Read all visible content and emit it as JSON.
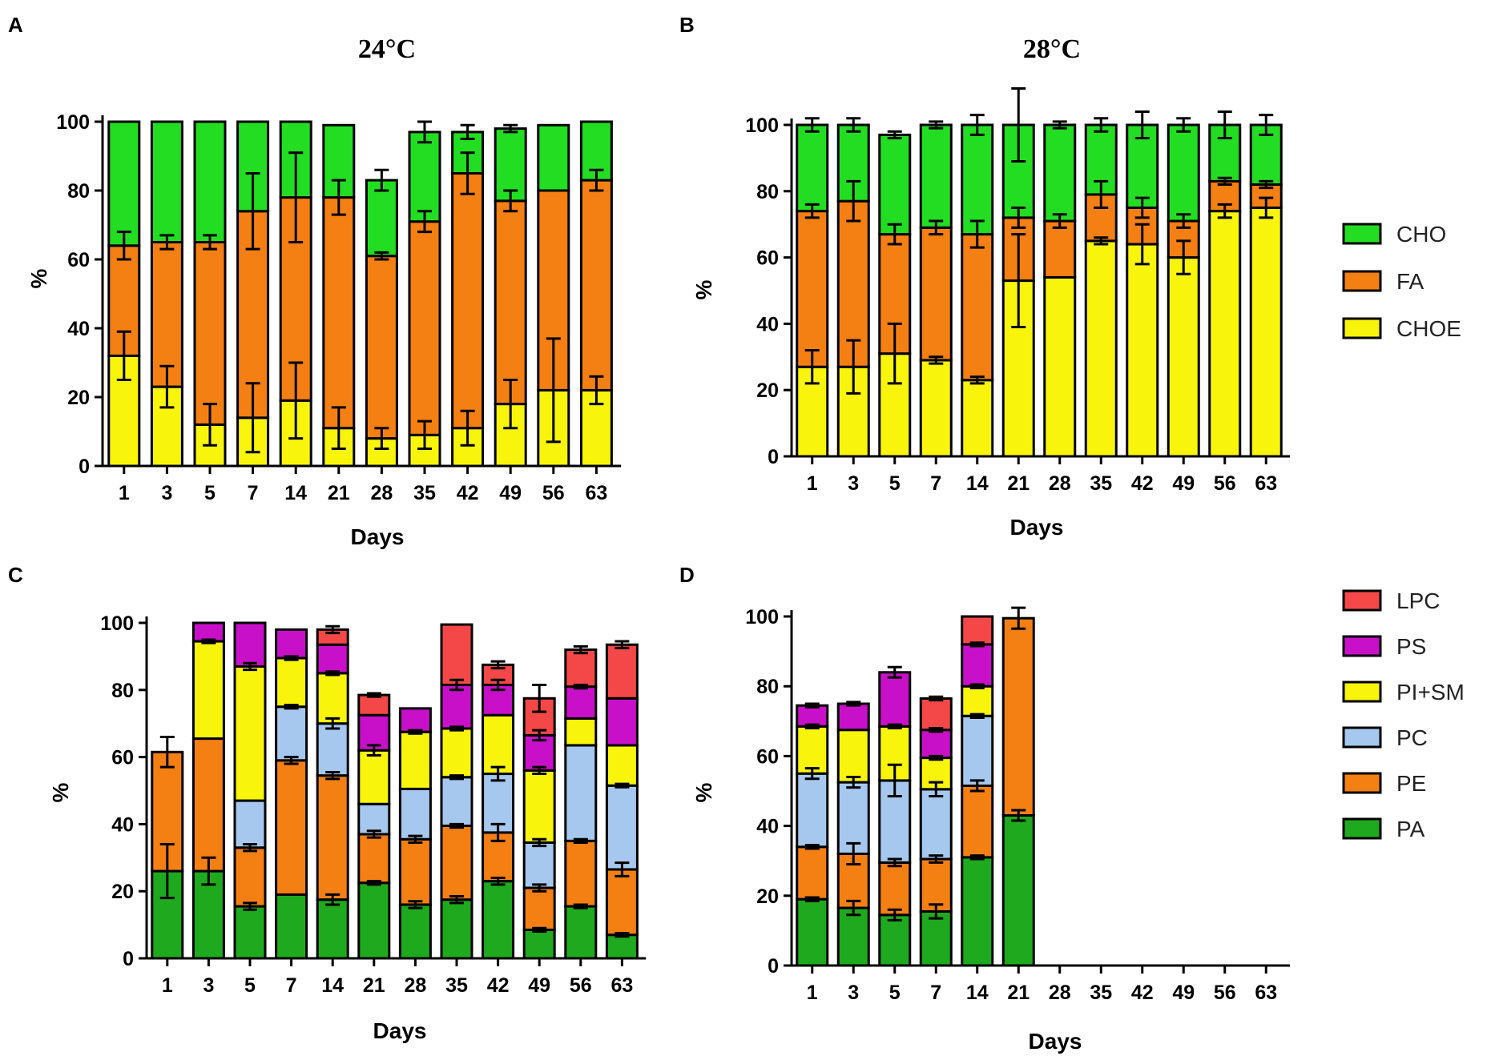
{
  "figure": {
    "background": "#ffffff"
  },
  "colors": {
    "CHO": "#22dd22",
    "FA": "#f47f13",
    "CHOE": "#f8f40c",
    "PA": "#1ea91e",
    "PE": "#f47f13",
    "PC": "#a6c8ee",
    "PI+SM": "#f8f40c",
    "PS": "#c810c8",
    "LPC": "#f44848"
  },
  "legends": {
    "top": [
      "CHO",
      "FA",
      "CHOE"
    ],
    "bottom": [
      "LPC",
      "PS",
      "PI+SM",
      "PC",
      "PE",
      "PA"
    ]
  },
  "chart_data": [
    {
      "panel": "A",
      "title": "24°C",
      "type": "bar",
      "stacked": true,
      "categories": [
        "1",
        "3",
        "5",
        "7",
        "14",
        "21",
        "28",
        "35",
        "42",
        "49",
        "56",
        "63"
      ],
      "xlabel": "Days",
      "ylabel": "%",
      "ylim": [
        0,
        100
      ],
      "yticks": [
        0,
        20,
        40,
        60,
        80,
        100
      ],
      "series": [
        {
          "name": "CHOE",
          "values": [
            32,
            23,
            12,
            14,
            19,
            11,
            8,
            9,
            11,
            18,
            22,
            22
          ],
          "errors": [
            7,
            6,
            6,
            10,
            11,
            6,
            3,
            4,
            5,
            7,
            15,
            4
          ]
        },
        {
          "name": "FA",
          "values": [
            32,
            42,
            53,
            60,
            59,
            67,
            53,
            62,
            74,
            59,
            58,
            61
          ],
          "errors": [
            4,
            2,
            2,
            11,
            13,
            5,
            1,
            3,
            6,
            3,
            0,
            3
          ]
        },
        {
          "name": "CHO",
          "values": [
            36,
            35,
            35,
            26,
            22,
            21,
            22,
            26,
            12,
            21,
            19,
            17
          ],
          "errors": [
            0,
            0,
            0,
            0,
            0,
            0,
            3,
            3,
            2,
            1,
            0,
            0
          ]
        }
      ]
    },
    {
      "panel": "B",
      "title": "28°C",
      "type": "bar",
      "stacked": true,
      "categories": [
        "1",
        "3",
        "5",
        "7",
        "14",
        "21",
        "28",
        "35",
        "42",
        "49",
        "56",
        "63"
      ],
      "xlabel": "Days",
      "ylabel": "%",
      "ylim": [
        0,
        100
      ],
      "yticks": [
        0,
        20,
        40,
        60,
        80,
        100
      ],
      "series": [
        {
          "name": "CHOE",
          "values": [
            27,
            27,
            31,
            29,
            23,
            53,
            54,
            65,
            64,
            60,
            74,
            75
          ],
          "errors": [
            5,
            8,
            9,
            1,
            1,
            14,
            0,
            1,
            6,
            5,
            2,
            3
          ]
        },
        {
          "name": "FA",
          "values": [
            47,
            50,
            36,
            40,
            44,
            19,
            17,
            14,
            11,
            11,
            9,
            7
          ],
          "errors": [
            2,
            6,
            3,
            2,
            4,
            3,
            2,
            4,
            3,
            2,
            1,
            1
          ]
        },
        {
          "name": "CHO",
          "values": [
            26,
            23,
            30,
            31,
            33,
            28,
            29,
            21,
            25,
            29,
            17,
            18
          ],
          "errors": [
            2,
            2,
            1,
            1,
            3,
            11,
            1,
            2,
            4,
            2,
            4,
            3
          ]
        }
      ]
    },
    {
      "panel": "C",
      "type": "bar",
      "stacked": true,
      "categories": [
        "1",
        "3",
        "5",
        "7",
        "14",
        "21",
        "28",
        "35",
        "42",
        "49",
        "56",
        "63"
      ],
      "xlabel": "Days",
      "ylabel": "%",
      "ylim": [
        0,
        100
      ],
      "yticks": [
        0,
        20,
        40,
        60,
        80,
        100
      ],
      "series": [
        {
          "name": "PA",
          "values": [
            26,
            26,
            15.5,
            19,
            17.5,
            22.5,
            16,
            17.5,
            23,
            8.5,
            15.5,
            7
          ],
          "errors": [
            8,
            4,
            1,
            0,
            1.5,
            0.5,
            1,
            1,
            1,
            0.5,
            0.5,
            0.5
          ]
        },
        {
          "name": "PE",
          "values": [
            35.5,
            39.5,
            17.5,
            40,
            37,
            14.5,
            19.5,
            22,
            14.5,
            12.5,
            19.5,
            19.5
          ],
          "errors": [
            4.5,
            0,
            1,
            1,
            1,
            1,
            1,
            0.5,
            2.5,
            1,
            0.5,
            2
          ]
        },
        {
          "name": "PC",
          "values": [
            0,
            0,
            14,
            16,
            15.5,
            9,
            15,
            14.5,
            17.5,
            13.5,
            28.5,
            25
          ],
          "errors": [
            0,
            0,
            0,
            0.5,
            1.5,
            0,
            0,
            0.5,
            2,
            1,
            0,
            0.5
          ]
        },
        {
          "name": "PI+SM",
          "values": [
            0,
            29,
            40,
            14.5,
            15,
            16,
            17,
            14.5,
            17.5,
            21.5,
            8,
            12
          ],
          "errors": [
            0,
            0.5,
            1,
            0.5,
            0.5,
            1.5,
            0.5,
            0.5,
            0,
            1,
            0,
            0
          ]
        },
        {
          "name": "PS",
          "values": [
            0,
            5.5,
            13,
            8.5,
            8.5,
            10.5,
            7,
            13,
            9,
            10.5,
            9.5,
            14
          ],
          "errors": [
            0,
            0,
            0,
            0,
            0,
            0,
            0,
            1.5,
            1.5,
            1.5,
            0.5,
            0
          ]
        },
        {
          "name": "LPC",
          "values": [
            0,
            0,
            0,
            0,
            4.5,
            6,
            0,
            18,
            6,
            11,
            11,
            16
          ],
          "errors": [
            0,
            0,
            0,
            0,
            1,
            0.5,
            0,
            0,
            1,
            4,
            1,
            1
          ]
        }
      ]
    },
    {
      "panel": "D",
      "type": "bar",
      "stacked": true,
      "categories": [
        "1",
        "3",
        "5",
        "7",
        "14",
        "21",
        "28",
        "35",
        "42",
        "49",
        "56",
        "63"
      ],
      "xlabel": "Days",
      "ylabel": "%",
      "ylim": [
        0,
        100
      ],
      "yticks": [
        0,
        20,
        40,
        60,
        80,
        100
      ],
      "series": [
        {
          "name": "PA",
          "values": [
            19,
            16.5,
            14.5,
            15.5,
            31,
            43,
            null,
            null,
            null,
            null,
            null,
            null
          ],
          "errors": [
            0.5,
            2,
            1.5,
            2,
            0.5,
            1.5,
            null,
            null,
            null,
            null,
            null,
            null
          ]
        },
        {
          "name": "PE",
          "values": [
            15,
            15.5,
            15,
            15,
            20.5,
            56.5,
            null,
            null,
            null,
            null,
            null,
            null
          ],
          "errors": [
            0.5,
            3,
            1,
            1,
            1.5,
            3,
            null,
            null,
            null,
            null,
            null,
            null
          ]
        },
        {
          "name": "PC",
          "values": [
            21,
            20.5,
            23.5,
            20,
            20,
            0,
            null,
            null,
            null,
            null,
            null,
            null
          ],
          "errors": [
            1.5,
            1.5,
            4.5,
            2,
            0.5,
            0,
            null,
            null,
            null,
            null,
            null,
            null
          ]
        },
        {
          "name": "PI+SM",
          "values": [
            13.5,
            15,
            15.5,
            9,
            8.5,
            0,
            null,
            null,
            null,
            null,
            null,
            null
          ],
          "errors": [
            0.5,
            0,
            0.5,
            0.5,
            0.5,
            0,
            null,
            null,
            null,
            null,
            null,
            null
          ]
        },
        {
          "name": "PS",
          "values": [
            6,
            7.5,
            15.5,
            8,
            12,
            0,
            null,
            null,
            null,
            null,
            null,
            null
          ],
          "errors": [
            0.5,
            0.5,
            1.5,
            0.5,
            0.5,
            0,
            null,
            null,
            null,
            null,
            null,
            null
          ]
        },
        {
          "name": "LPC",
          "values": [
            0,
            0,
            0,
            9,
            8,
            0,
            null,
            null,
            null,
            null,
            null,
            null
          ],
          "errors": [
            0,
            0,
            0,
            0.5,
            0,
            0,
            null,
            null,
            null,
            null,
            null,
            null
          ]
        }
      ]
    }
  ]
}
